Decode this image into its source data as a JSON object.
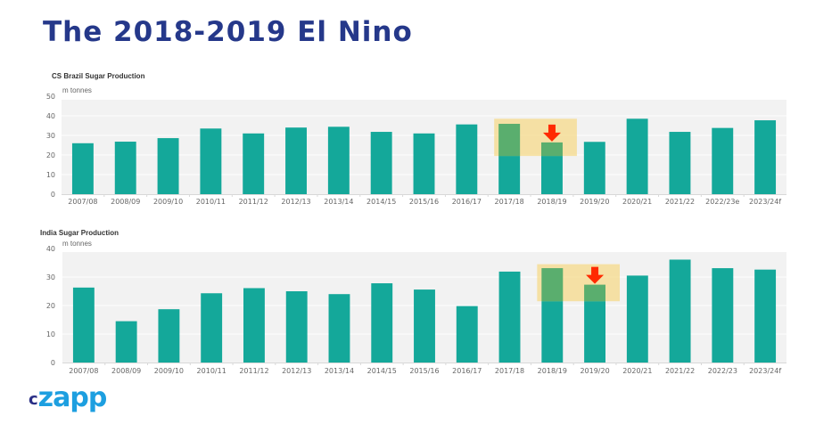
{
  "page": {
    "title": "The 2018-2019 El Nino",
    "logo": {
      "prefix": "c",
      "text": "zapp"
    }
  },
  "colors": {
    "bar": "#14a89a",
    "highlight": "#f5d98a",
    "highlight_bar": "#5aae6e",
    "arrow": "#ff2a00",
    "plot_bg": "#f2f2f2",
    "title": "#25388a"
  },
  "chart_data": [
    {
      "type": "bar",
      "title": "CS Brazil Sugar Production",
      "ylabel": "m tonnes",
      "xlabel": "",
      "ylim": [
        0,
        50
      ],
      "yticks": [
        0,
        10,
        20,
        30,
        40,
        50
      ],
      "grid": true,
      "categories": [
        "2007/08",
        "2008/09",
        "2009/10",
        "2010/11",
        "2011/12",
        "2012/13",
        "2013/14",
        "2014/15",
        "2015/16",
        "2016/17",
        "2017/18",
        "2018/19",
        "2019/20",
        "2020/21",
        "2021/22",
        "2022/23e",
        "2023/24f"
      ],
      "values": [
        26.0,
        26.8,
        28.6,
        33.5,
        31.0,
        34.0,
        34.4,
        31.8,
        31.0,
        35.6,
        35.9,
        26.4,
        26.7,
        38.5,
        31.8,
        33.8,
        37.7
      ],
      "highlight": {
        "categories": [
          "2017/18",
          "2018/19"
        ],
        "yrange": [
          19.5,
          38.5
        ],
        "arrow_category": "2018/19"
      }
    },
    {
      "type": "bar",
      "title": "India Sugar Production",
      "ylabel": "m tonnes",
      "xlabel": "",
      "ylim": [
        0,
        40
      ],
      "yticks": [
        0,
        10,
        20,
        30,
        40
      ],
      "grid": true,
      "categories": [
        "2007/08",
        "2008/09",
        "2009/10",
        "2010/11",
        "2011/12",
        "2012/13",
        "2013/14",
        "2014/15",
        "2015/16",
        "2016/17",
        "2017/18",
        "2018/19",
        "2019/20",
        "2020/21",
        "2021/22",
        "2022/23",
        "2023/24f"
      ],
      "values": [
        26.3,
        14.5,
        18.7,
        24.3,
        26.1,
        25.0,
        24.0,
        27.8,
        25.6,
        19.8,
        31.9,
        33.1,
        27.3,
        30.5,
        36.1,
        33.1,
        32.6
      ],
      "highlight": {
        "categories": [
          "2018/19",
          "2019/20"
        ],
        "yrange": [
          21.5,
          34.5
        ],
        "arrow_category": "2019/20"
      }
    }
  ]
}
